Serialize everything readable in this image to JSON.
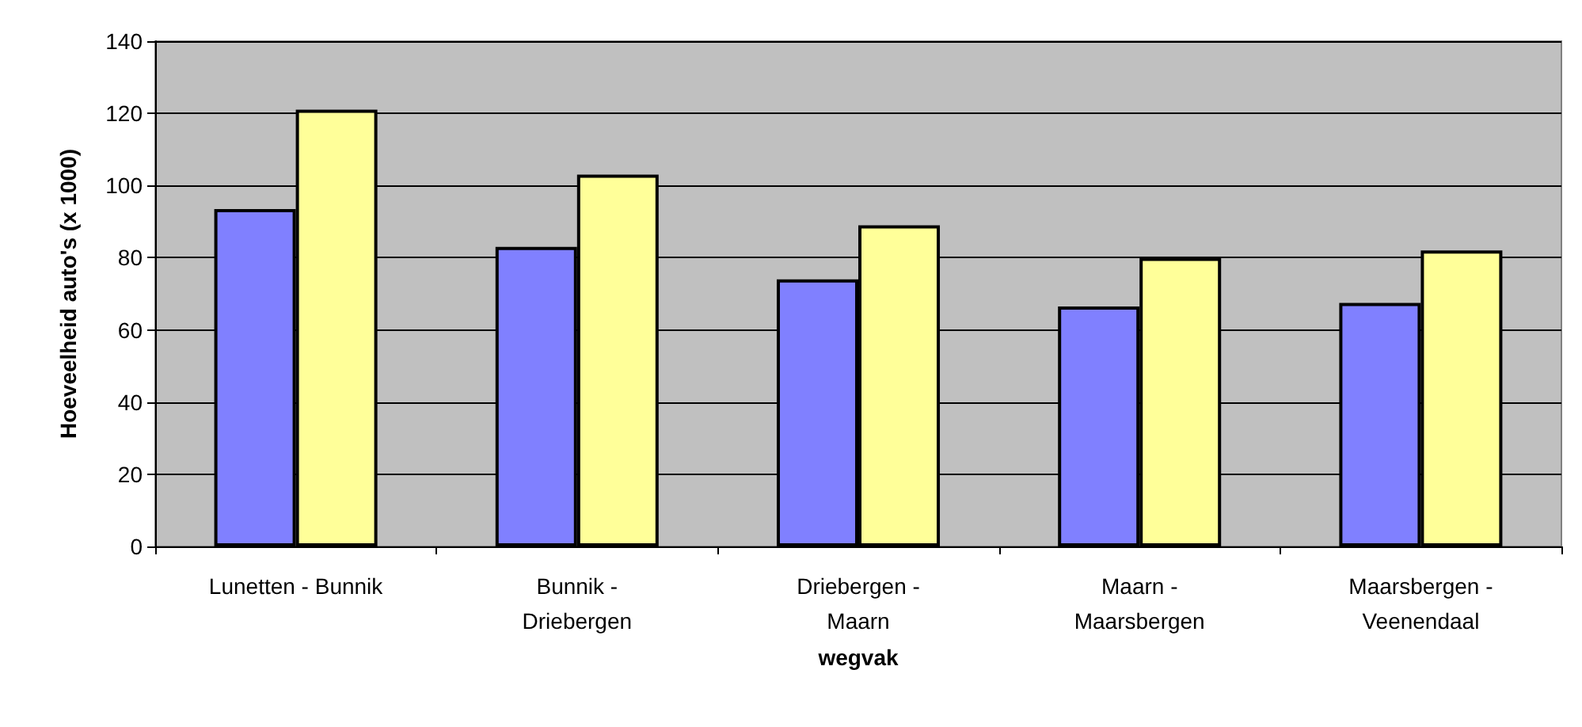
{
  "chart_data": {
    "type": "bar",
    "xlabel": "wegvak",
    "ylabel": "Hoeveelheid auto's (x 1000)",
    "categories": [
      "Lunetten - Bunnik",
      "Bunnik -\nDriebergen",
      "Driebergen -\nMaarn",
      "Maarn -\nMaarsbergen",
      "Maarsbergen -\nVeenendaal"
    ],
    "series": [
      {
        "color": "#8080ff",
        "values": [
          93.5,
          83,
          74,
          66.5,
          67.5
        ]
      },
      {
        "color": "#ffff99",
        "values": [
          121,
          103,
          89,
          80,
          82
        ]
      }
    ],
    "ylim": [
      0,
      140
    ],
    "yticks": [
      0,
      20,
      40,
      60,
      80,
      100,
      120,
      140
    ],
    "grid": "y"
  }
}
